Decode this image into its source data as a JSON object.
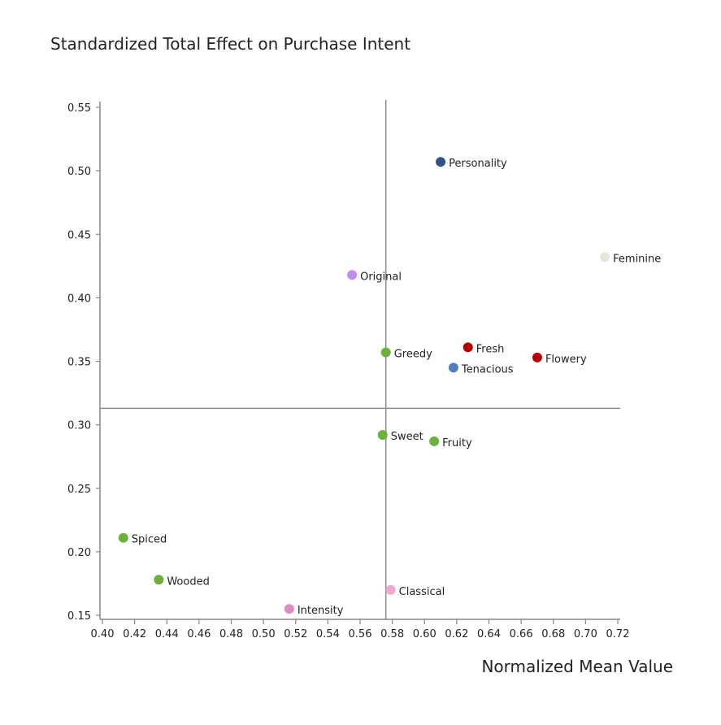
{
  "chart_data": {
    "type": "scatter",
    "ylabel": "Standardized Total Effect on Purchase Intent",
    "xlabel": "Normalized Mean Value",
    "xlim": [
      0.4,
      0.72
    ],
    "ylim": [
      0.15,
      0.55
    ],
    "x_ticks": [
      "0.40",
      "0.42",
      "0.44",
      "0.46",
      "0.48",
      "0.50",
      "0.52",
      "0.54",
      "0.56",
      "0.58",
      "0.60",
      "0.62",
      "0.64",
      "0.66",
      "0.68",
      "0.70",
      "0.72"
    ],
    "y_ticks": [
      "0.15",
      "0.20",
      "0.25",
      "0.30",
      "0.35",
      "0.40",
      "0.45",
      "0.50",
      "0.55"
    ],
    "reference_lines": {
      "x": 0.576,
      "y": 0.313
    },
    "grid": false,
    "points": [
      {
        "label": "Personality",
        "x": 0.61,
        "y": 0.507,
        "color": "#2e5288"
      },
      {
        "label": "Feminine",
        "x": 0.712,
        "y": 0.432,
        "color": "#e6e8d6"
      },
      {
        "label": "Original",
        "x": 0.555,
        "y": 0.418,
        "color": "#c08ef0"
      },
      {
        "label": "Greedy",
        "x": 0.576,
        "y": 0.357,
        "color": "#6ab23a"
      },
      {
        "label": "Fresh",
        "x": 0.627,
        "y": 0.361,
        "color": "#b80000"
      },
      {
        "label": "Flowery",
        "x": 0.67,
        "y": 0.353,
        "color": "#b80000"
      },
      {
        "label": "Tenacious",
        "x": 0.618,
        "y": 0.345,
        "color": "#4f7fc0"
      },
      {
        "label": "Sweet",
        "x": 0.574,
        "y": 0.292,
        "color": "#6ab23a"
      },
      {
        "label": "Fruity",
        "x": 0.606,
        "y": 0.287,
        "color": "#6ab23a"
      },
      {
        "label": "Spiced",
        "x": 0.413,
        "y": 0.211,
        "color": "#6ab23a"
      },
      {
        "label": "Wooded",
        "x": 0.435,
        "y": 0.178,
        "color": "#6ab23a"
      },
      {
        "label": "Classical",
        "x": 0.579,
        "y": 0.17,
        "color": "#f0a6d2"
      },
      {
        "label": "Intensity",
        "x": 0.516,
        "y": 0.155,
        "color": "#e08ac4"
      }
    ]
  }
}
